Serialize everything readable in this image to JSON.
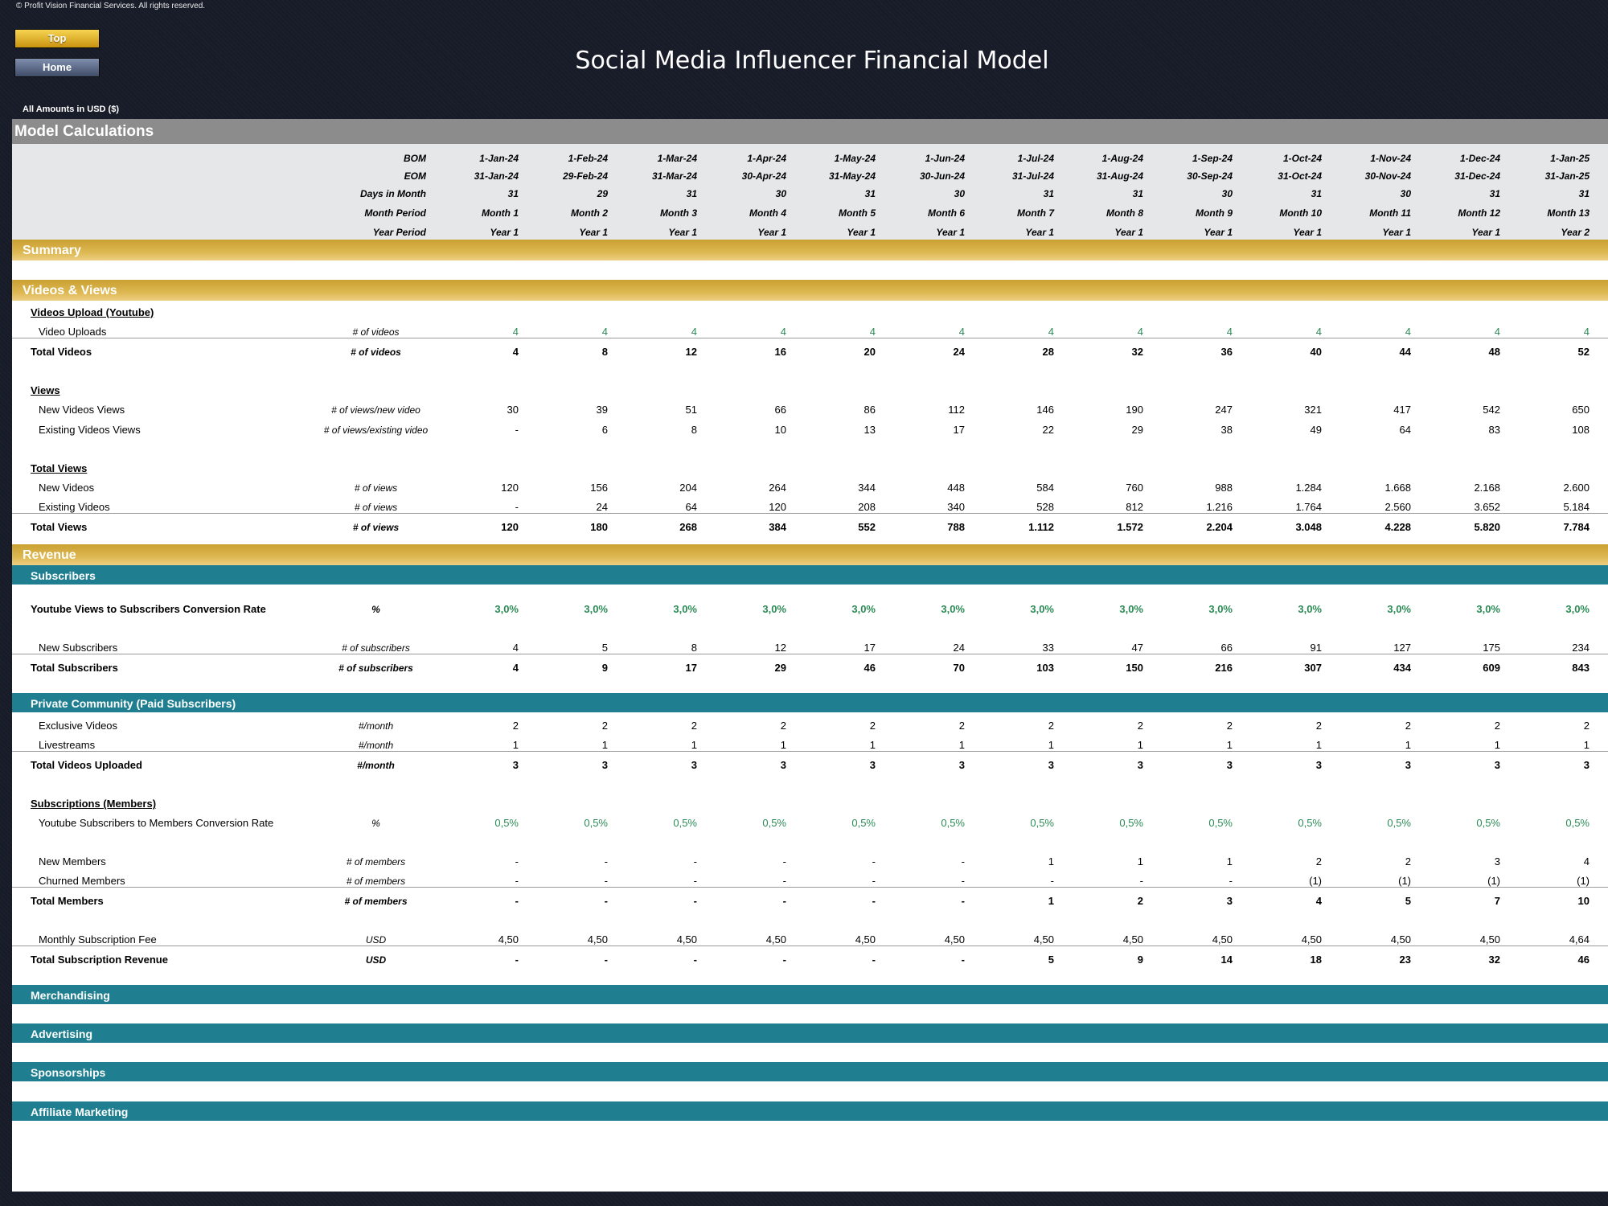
{
  "copyright": "© Profit Vision Financial Services. All rights reserved.",
  "nav": {
    "top": "Top",
    "home": "Home"
  },
  "title": "Social Media Influencer Financial Model",
  "amounts_note": "All Amounts in  USD ($)",
  "sheet_title": "Model Calculations",
  "header_rows": [
    {
      "label": "BOM",
      "values": [
        "1-Jan-24",
        "1-Feb-24",
        "1-Mar-24",
        "1-Apr-24",
        "1-May-24",
        "1-Jun-24",
        "1-Jul-24",
        "1-Aug-24",
        "1-Sep-24",
        "1-Oct-24",
        "1-Nov-24",
        "1-Dec-24",
        "1-Jan-25"
      ]
    },
    {
      "label": "EOM",
      "values": [
        "31-Jan-24",
        "29-Feb-24",
        "31-Mar-24",
        "30-Apr-24",
        "31-May-24",
        "30-Jun-24",
        "31-Jul-24",
        "31-Aug-24",
        "30-Sep-24",
        "31-Oct-24",
        "30-Nov-24",
        "31-Dec-24",
        "31-Jan-25"
      ]
    },
    {
      "label": "Days in Month",
      "values": [
        "31",
        "29",
        "31",
        "30",
        "31",
        "30",
        "31",
        "31",
        "30",
        "31",
        "30",
        "31",
        "31"
      ]
    },
    {
      "label": "Month Period",
      "values": [
        "Month 1",
        "Month 2",
        "Month 3",
        "Month 4",
        "Month 5",
        "Month 6",
        "Month 7",
        "Month 8",
        "Month 9",
        "Month 10",
        "Month 11",
        "Month 12",
        "Month 13"
      ]
    },
    {
      "label": "Year Period",
      "values": [
        "Year 1",
        "Year 1",
        "Year 1",
        "Year 1",
        "Year 1",
        "Year 1",
        "Year 1",
        "Year 1",
        "Year 1",
        "Year 1",
        "Year 1",
        "Year 1",
        "Year 2"
      ]
    }
  ],
  "sections": {
    "summary": "Summary",
    "videos_views": "Videos & Views",
    "revenue": "Revenue",
    "subscribers": "Subscribers",
    "private_community": "Private Community (Paid Subscribers)",
    "merchandising": "Merchandising",
    "advertising": "Advertising",
    "sponsorships": "Sponsorships",
    "affiliate": "Affiliate Marketing"
  },
  "videos": {
    "heading": "Videos Upload (Youtube)",
    "uploads": {
      "label": "Video Uploads",
      "unit": "# of videos",
      "values": [
        "4",
        "4",
        "4",
        "4",
        "4",
        "4",
        "4",
        "4",
        "4",
        "4",
        "4",
        "4",
        "4"
      ]
    },
    "total": {
      "label": "Total Videos",
      "unit": "# of videos",
      "values": [
        "4",
        "8",
        "12",
        "16",
        "20",
        "24",
        "28",
        "32",
        "36",
        "40",
        "44",
        "48",
        "52"
      ]
    }
  },
  "views": {
    "heading": "Views",
    "new": {
      "label": "New Videos Views",
      "unit": "# of views/new video",
      "values": [
        "30",
        "39",
        "51",
        "66",
        "86",
        "112",
        "146",
        "190",
        "247",
        "321",
        "417",
        "542",
        "650"
      ]
    },
    "existing": {
      "label": "Existing Videos Views",
      "unit": "# of views/existing video",
      "values": [
        "-",
        "6",
        "8",
        "10",
        "13",
        "17",
        "22",
        "29",
        "38",
        "49",
        "64",
        "83",
        "108"
      ]
    }
  },
  "total_views": {
    "heading": "Total Views",
    "new": {
      "label": "New Videos",
      "unit": "# of views",
      "values": [
        "120",
        "156",
        "204",
        "264",
        "344",
        "448",
        "584",
        "760",
        "988",
        "1.284",
        "1.668",
        "2.168",
        "2.600"
      ]
    },
    "existing": {
      "label": "Existing Videos",
      "unit": "# of views",
      "values": [
        "-",
        "24",
        "64",
        "120",
        "208",
        "340",
        "528",
        "812",
        "1.216",
        "1.764",
        "2.560",
        "3.652",
        "5.184"
      ]
    },
    "total": {
      "label": "Total Views",
      "unit": "# of views",
      "values": [
        "120",
        "180",
        "268",
        "384",
        "552",
        "788",
        "1.112",
        "1.572",
        "2.204",
        "3.048",
        "4.228",
        "5.820",
        "7.784"
      ]
    }
  },
  "subscribers": {
    "conversion": {
      "label": "Youtube Views to Subscribers Conversion Rate",
      "unit": "%",
      "values": [
        "3,0%",
        "3,0%",
        "3,0%",
        "3,0%",
        "3,0%",
        "3,0%",
        "3,0%",
        "3,0%",
        "3,0%",
        "3,0%",
        "3,0%",
        "3,0%",
        "3,0%"
      ]
    },
    "new": {
      "label": "New Subscribers",
      "unit": "# of subscribers",
      "values": [
        "4",
        "5",
        "8",
        "12",
        "17",
        "24",
        "33",
        "47",
        "66",
        "91",
        "127",
        "175",
        "234"
      ]
    },
    "total": {
      "label": "Total Subscribers",
      "unit": "# of subscribers",
      "values": [
        "4",
        "9",
        "17",
        "29",
        "46",
        "70",
        "103",
        "150",
        "216",
        "307",
        "434",
        "609",
        "843"
      ]
    }
  },
  "community": {
    "exclusive": {
      "label": "Exclusive Videos",
      "unit": "#/month",
      "values": [
        "2",
        "2",
        "2",
        "2",
        "2",
        "2",
        "2",
        "2",
        "2",
        "2",
        "2",
        "2",
        "2"
      ]
    },
    "livestreams": {
      "label": "Livestreams",
      "unit": "#/month",
      "values": [
        "1",
        "1",
        "1",
        "1",
        "1",
        "1",
        "1",
        "1",
        "1",
        "1",
        "1",
        "1",
        "1"
      ]
    },
    "total": {
      "label": "Total Videos Uploaded",
      "unit": "#/month",
      "values": [
        "3",
        "3",
        "3",
        "3",
        "3",
        "3",
        "3",
        "3",
        "3",
        "3",
        "3",
        "3",
        "3"
      ]
    }
  },
  "subscriptions": {
    "heading": "Subscriptions (Members)",
    "conversion": {
      "label": "Youtube Subscribers to Members Conversion Rate",
      "unit": "%",
      "values": [
        "0,5%",
        "0,5%",
        "0,5%",
        "0,5%",
        "0,5%",
        "0,5%",
        "0,5%",
        "0,5%",
        "0,5%",
        "0,5%",
        "0,5%",
        "0,5%",
        "0,5%"
      ]
    },
    "new": {
      "label": "New Members",
      "unit": "# of members",
      "values": [
        "-",
        "-",
        "-",
        "-",
        "-",
        "-",
        "1",
        "1",
        "1",
        "2",
        "2",
        "3",
        "4"
      ]
    },
    "churned": {
      "label": "Churned Members",
      "unit": "# of members",
      "values": [
        "-",
        "-",
        "-",
        "-",
        "-",
        "-",
        "-",
        "-",
        "-",
        "(1)",
        "(1)",
        "(1)",
        "(1)"
      ]
    },
    "total": {
      "label": "Total Members",
      "unit": "# of members",
      "values": [
        "-",
        "-",
        "-",
        "-",
        "-",
        "-",
        "1",
        "2",
        "3",
        "4",
        "5",
        "7",
        "10"
      ]
    },
    "fee": {
      "label": "Monthly Subscription Fee",
      "unit": "USD",
      "values": [
        "4,50",
        "4,50",
        "4,50",
        "4,50",
        "4,50",
        "4,50",
        "4,50",
        "4,50",
        "4,50",
        "4,50",
        "4,50",
        "4,50",
        "4,64"
      ]
    },
    "revenue": {
      "label": "Total Subscription Revenue",
      "unit": "USD",
      "values": [
        "-",
        "-",
        "-",
        "-",
        "-",
        "-",
        "5",
        "9",
        "14",
        "18",
        "23",
        "32",
        "46"
      ]
    }
  }
}
